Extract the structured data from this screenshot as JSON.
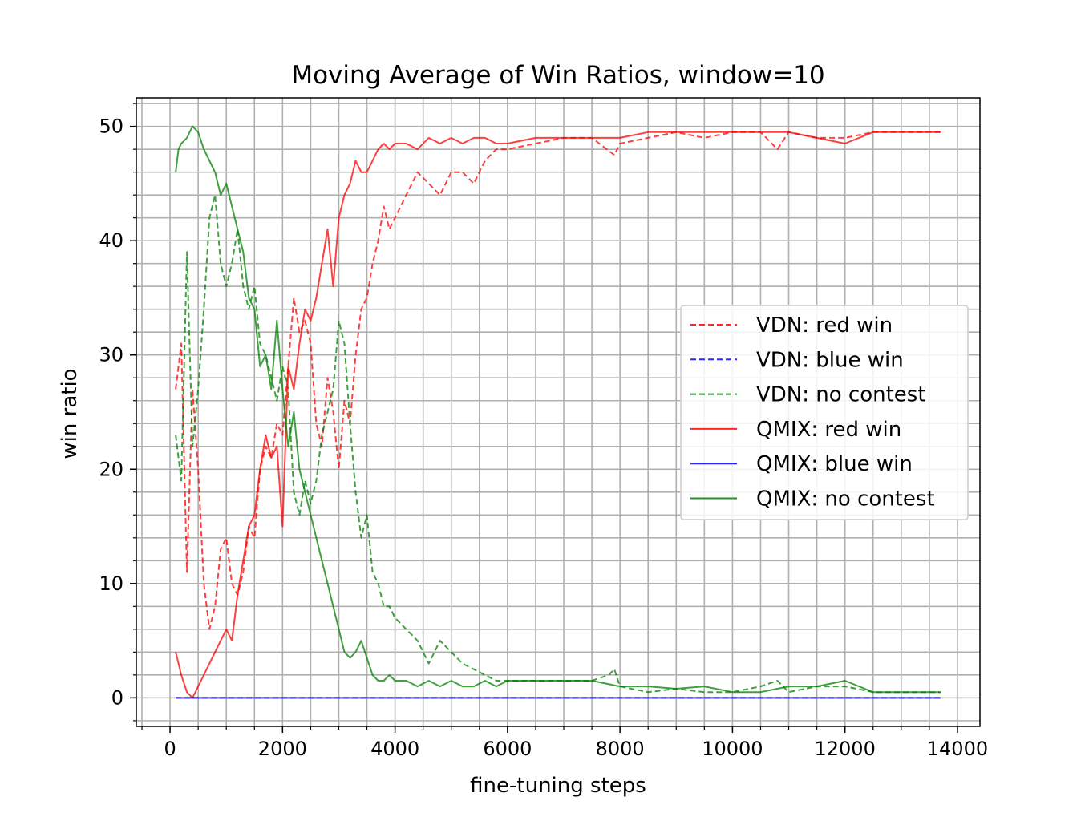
{
  "chart_data": {
    "type": "line",
    "title": "Moving Average of Win Ratios, window=10",
    "xlabel": "fine-tuning steps",
    "ylabel": "win ratio",
    "xlim": [
      -600,
      14400
    ],
    "ylim": [
      -2.5,
      52.5
    ],
    "x_ticks": [
      0,
      2000,
      4000,
      6000,
      8000,
      10000,
      12000,
      14000
    ],
    "y_ticks": [
      0,
      10,
      20,
      30,
      40,
      50
    ],
    "x_minor_step": 500,
    "y_minor_step": 2,
    "grid": true,
    "legend_position": "center-right",
    "series": [
      {
        "name": "VDN: red win",
        "color": "#ff0000",
        "style": "dashed",
        "x": [
          100,
          200,
          300,
          400,
          500,
          600,
          700,
          800,
          900,
          1000,
          1100,
          1200,
          1300,
          1400,
          1500,
          1600,
          1700,
          1800,
          1900,
          2000,
          2100,
          2200,
          2300,
          2400,
          2500,
          2600,
          2700,
          2800,
          2900,
          3000,
          3100,
          3200,
          3300,
          3400,
          3500,
          3600,
          3700,
          3800,
          3900,
          4000,
          4200,
          4400,
          4600,
          4800,
          5000,
          5200,
          5400,
          5600,
          5800,
          6000,
          6500,
          7000,
          7500,
          7900,
          8000,
          8500,
          9000,
          9500,
          10000,
          10500,
          10800,
          11000,
          11500,
          12000,
          12500,
          13000,
          13700
        ],
        "y": [
          27,
          31,
          11,
          27,
          20,
          10,
          6,
          8,
          13,
          14,
          10,
          9,
          11,
          15,
          14,
          20,
          22,
          21,
          24,
          23,
          29,
          35,
          32,
          33,
          31,
          24,
          22,
          28,
          25,
          20,
          26,
          24,
          30,
          34,
          35,
          38,
          40,
          43,
          41,
          42,
          44,
          46,
          45,
          44,
          46,
          46,
          45,
          47,
          48,
          48,
          48.5,
          49,
          49,
          47.5,
          48.5,
          49,
          49.5,
          49,
          49.5,
          49.5,
          48,
          49.5,
          49,
          49,
          49.5,
          49.5,
          49.5
        ]
      },
      {
        "name": "VDN: blue win",
        "color": "#0000ff",
        "style": "dashed",
        "x": [
          100,
          13700
        ],
        "y": [
          0,
          0
        ]
      },
      {
        "name": "VDN: no contest",
        "color": "#008000",
        "style": "dashed",
        "x": [
          100,
          200,
          300,
          400,
          500,
          600,
          700,
          800,
          900,
          1000,
          1100,
          1200,
          1300,
          1400,
          1500,
          1600,
          1700,
          1800,
          1900,
          2000,
          2100,
          2200,
          2300,
          2400,
          2500,
          2600,
          2700,
          2800,
          2900,
          3000,
          3100,
          3200,
          3300,
          3400,
          3500,
          3600,
          3700,
          3800,
          3900,
          4000,
          4200,
          4400,
          4600,
          4800,
          5000,
          5200,
          5400,
          5600,
          5800,
          6000,
          6500,
          7000,
          7500,
          7800,
          7900,
          8000,
          8500,
          9000,
          9500,
          10000,
          10500,
          10800,
          11000,
          11500,
          12000,
          12500,
          13000,
          13700
        ],
        "y": [
          23,
          19,
          39,
          22,
          27,
          34,
          42,
          44,
          38,
          36,
          38,
          41,
          36,
          34,
          36,
          31,
          30,
          28,
          26,
          29,
          27,
          18,
          16,
          19,
          17,
          19,
          23,
          25,
          27,
          33,
          31,
          24,
          18,
          14,
          16,
          11,
          10,
          8,
          8,
          7,
          6,
          5,
          3,
          5,
          4,
          3,
          2.5,
          2,
          1.5,
          1.5,
          1.5,
          1.5,
          1.5,
          2,
          2.5,
          1,
          0.5,
          0.8,
          0.5,
          0.5,
          1,
          1.5,
          0.5,
          1,
          1,
          0.5,
          0.5,
          0.5
        ]
      },
      {
        "name": "QMIX: red win",
        "color": "#ff0000",
        "style": "solid",
        "x": [
          100,
          200,
          300,
          400,
          500,
          600,
          700,
          800,
          900,
          1000,
          1100,
          1200,
          1300,
          1400,
          1500,
          1600,
          1700,
          1800,
          1900,
          2000,
          2100,
          2200,
          2300,
          2400,
          2500,
          2600,
          2700,
          2800,
          2900,
          3000,
          3100,
          3200,
          3300,
          3400,
          3500,
          3600,
          3700,
          3800,
          3900,
          4000,
          4200,
          4400,
          4600,
          4800,
          5000,
          5200,
          5400,
          5600,
          5800,
          6000,
          6500,
          7000,
          7500,
          8000,
          8500,
          9000,
          9500,
          10000,
          10500,
          11000,
          11500,
          12000,
          12500,
          13000,
          13700
        ],
        "y": [
          4,
          2,
          0.5,
          0,
          1,
          2,
          3,
          4,
          5,
          6,
          5,
          9,
          12,
          15,
          16,
          20,
          23,
          21,
          22,
          15,
          29,
          27,
          31,
          34,
          33,
          35,
          38,
          41,
          36,
          42,
          44,
          45,
          47,
          46,
          46,
          47,
          48,
          48.5,
          48,
          48.5,
          48.5,
          48,
          49,
          48.5,
          49,
          48.5,
          49,
          49,
          48.5,
          48.5,
          49,
          49,
          49,
          49,
          49.5,
          49.5,
          49.5,
          49.5,
          49.5,
          49.5,
          49,
          48.5,
          49.5,
          49.5,
          49.5
        ]
      },
      {
        "name": "QMIX: blue win",
        "color": "#0000ff",
        "style": "solid",
        "x": [
          100,
          13700
        ],
        "y": [
          0,
          0
        ]
      },
      {
        "name": "QMIX: no contest",
        "color": "#008000",
        "style": "solid",
        "x": [
          100,
          150,
          200,
          300,
          400,
          500,
          600,
          700,
          800,
          900,
          1000,
          1100,
          1200,
          1300,
          1400,
          1500,
          1600,
          1700,
          1800,
          1900,
          2000,
          2100,
          2200,
          2300,
          2400,
          2500,
          2600,
          2700,
          2800,
          2900,
          3000,
          3100,
          3200,
          3300,
          3400,
          3500,
          3600,
          3700,
          3800,
          3900,
          4000,
          4200,
          4400,
          4600,
          4800,
          5000,
          5200,
          5400,
          5600,
          5800,
          6000,
          6500,
          7000,
          7500,
          8000,
          8500,
          9000,
          9500,
          10000,
          10500,
          11000,
          11500,
          12000,
          12500,
          13000,
          13700
        ],
        "y": [
          46,
          48,
          48.5,
          49,
          50,
          49.5,
          48,
          47,
          46,
          44,
          45,
          43,
          41,
          39,
          35,
          34,
          29,
          30,
          27,
          33,
          27,
          22,
          25,
          20,
          18,
          16,
          14,
          12,
          10,
          8,
          6,
          4,
          3.5,
          4,
          5,
          3.5,
          2,
          1.5,
          1.5,
          2,
          1.5,
          1.5,
          1,
          1.5,
          1,
          1.5,
          1,
          1,
          1.5,
          1,
          1.5,
          1.5,
          1.5,
          1.5,
          1,
          1,
          0.8,
          1,
          0.5,
          0.5,
          1,
          1,
          1.5,
          0.5,
          0.5,
          0.5
        ]
      }
    ]
  }
}
